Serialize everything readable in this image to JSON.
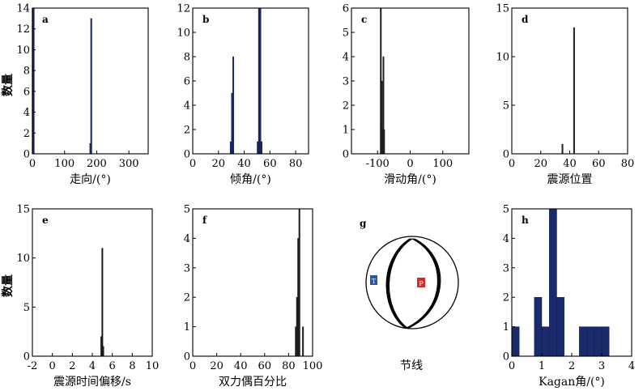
{
  "colors": {
    "navy": "#1b2a6b",
    "dark": "#1f1f1f",
    "tension_blue": "#2a55a8",
    "pressure_red": "#d42a2a"
  },
  "ylabels": {
    "left_top": "数量",
    "left_bottom": "数量"
  },
  "chart_data": [
    {
      "id": "a",
      "type": "bar",
      "label": "a",
      "xlabel": "走向/(°)",
      "ylabel": "数量",
      "xlim": [
        0,
        360
      ],
      "ylim": [
        0,
        14
      ],
      "xticks": [
        0,
        100,
        200,
        300
      ],
      "yticks": [
        0,
        2,
        4,
        6,
        8,
        10,
        12,
        14
      ],
      "color": "#1b2a6b",
      "bar_width": 3,
      "bars": [
        {
          "x": 1,
          "y": 14
        },
        {
          "x": 4,
          "y": 14
        },
        {
          "x": 180,
          "y": 1
        },
        {
          "x": 183,
          "y": 13
        }
      ]
    },
    {
      "id": "b",
      "type": "bar",
      "label": "b",
      "xlabel": "倾角/(°)",
      "xlim": [
        0,
        90
      ],
      "ylim": [
        0,
        12
      ],
      "xticks": [
        0,
        20,
        40,
        60,
        80
      ],
      "yticks": [
        0,
        2,
        4,
        6,
        8,
        10,
        12
      ],
      "color": "#1b2a6b",
      "bar_width": 1,
      "bars": [
        {
          "x": 29.5,
          "y": 1
        },
        {
          "x": 30.5,
          "y": 5
        },
        {
          "x": 31.5,
          "y": 8
        },
        {
          "x": 50.5,
          "y": 1
        },
        {
          "x": 51.5,
          "y": 12
        },
        {
          "x": 52.5,
          "y": 12
        },
        {
          "x": 53.5,
          "y": 1
        }
      ]
    },
    {
      "id": "c",
      "type": "bar",
      "label": "c",
      "xlabel": "滑动角/(°)",
      "xlim": [
        -180,
        180
      ],
      "ylim": [
        0,
        6
      ],
      "xticks": [
        -100,
        0,
        100
      ],
      "yticks": [
        0,
        1,
        2,
        3,
        4,
        5,
        6
      ],
      "color": "#1f1f1f",
      "bar_width": 2,
      "bars": [
        {
          "x": -90,
          "y": 6
        },
        {
          "x": -87,
          "y": 3
        },
        {
          "x": -85,
          "y": 1
        },
        {
          "x": -82,
          "y": 4
        },
        {
          "x": -80,
          "y": 1
        }
      ]
    },
    {
      "id": "d",
      "type": "bar",
      "label": "d",
      "xlabel": "震源位置",
      "xlim": [
        0,
        80
      ],
      "ylim": [
        0,
        15
      ],
      "xticks": [
        0,
        20,
        40,
        60,
        80
      ],
      "yticks": [
        0,
        5,
        10,
        15
      ],
      "color": "#1f1f1f",
      "bar_width": 0.8,
      "bars": [
        {
          "x": 35,
          "y": 1
        },
        {
          "x": 43,
          "y": 13
        }
      ]
    },
    {
      "id": "e",
      "type": "bar",
      "label": "e",
      "xlabel": "震源时间偏移/s",
      "ylabel": "数量",
      "xlim": [
        -2,
        10
      ],
      "ylim": [
        0,
        15
      ],
      "xticks": [
        -2,
        0,
        2,
        4,
        6,
        8,
        10
      ],
      "yticks": [
        0,
        5,
        10,
        15
      ],
      "color": "#1f1f1f",
      "bar_width": 0.1,
      "bars": [
        {
          "x": 4.9,
          "y": 2
        },
        {
          "x": 5.0,
          "y": 11
        },
        {
          "x": 5.1,
          "y": 1
        }
      ]
    },
    {
      "id": "f",
      "type": "bar",
      "label": "f",
      "xlabel": "双力偶百分比",
      "xlim": [
        0,
        100
      ],
      "ylim": [
        0,
        5
      ],
      "xticks": [
        0,
        20,
        40,
        60,
        80,
        100
      ],
      "yticks": [
        0,
        1,
        2,
        3,
        4,
        5
      ],
      "color": "#1f1f1f",
      "bar_width": 1,
      "bars": [
        {
          "x": 86,
          "y": 1
        },
        {
          "x": 87,
          "y": 2
        },
        {
          "x": 88,
          "y": 4
        },
        {
          "x": 89,
          "y": 5
        },
        {
          "x": 92,
          "y": 1
        }
      ]
    },
    {
      "id": "g",
      "type": "beachball",
      "label": "g",
      "xlabel": "节线",
      "t_label": "T",
      "p_label": "P"
    },
    {
      "id": "h",
      "type": "bar",
      "label": "h",
      "xlabel": "Kagan角/(°)",
      "xlim": [
        0,
        4
      ],
      "ylim": [
        0,
        5
      ],
      "xticks": [
        0,
        1,
        2,
        3,
        4
      ],
      "yticks": [
        0,
        1,
        2,
        3,
        4,
        5
      ],
      "color": "#1b2a6b",
      "bar_width": 0.25,
      "bars": [
        {
          "x": 0.125,
          "y": 1
        },
        {
          "x": 0.875,
          "y": 2
        },
        {
          "x": 1.125,
          "y": 1
        },
        {
          "x": 1.375,
          "y": 5
        },
        {
          "x": 1.625,
          "y": 2
        },
        {
          "x": 2.375,
          "y": 1
        },
        {
          "x": 2.625,
          "y": 1
        },
        {
          "x": 2.875,
          "y": 1
        },
        {
          "x": 3.125,
          "y": 1
        }
      ]
    }
  ]
}
